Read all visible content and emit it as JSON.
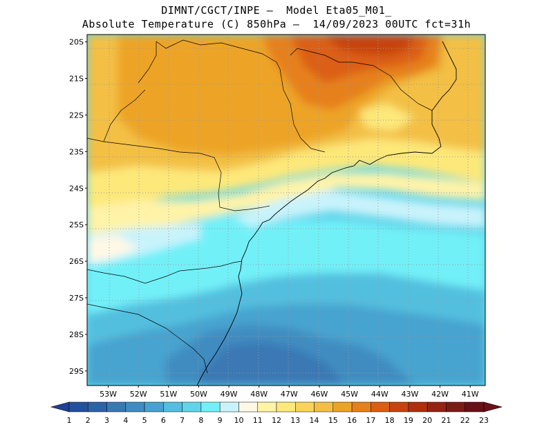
{
  "header": {
    "line1": "DIMNT/CGCT/INPE –  Model Eta05_M01_",
    "line2": "Absolute Temperature (C) 850hPa –  14/09/2023 00UTC fct=31h"
  },
  "map": {
    "lat_labels": [
      "20S",
      "21S",
      "22S",
      "23S",
      "24S",
      "25S",
      "26S",
      "27S",
      "28S",
      "29S"
    ],
    "lon_labels": [
      "53W",
      "52W",
      "51W",
      "50W",
      "49W",
      "48W",
      "47W",
      "46W",
      "45W",
      "44W",
      "43W",
      "42W",
      "41W"
    ],
    "lat_values": [
      -20,
      -21,
      -22,
      -23,
      -24,
      -25,
      -26,
      -27,
      -28,
      -29
    ],
    "lon_values": [
      -53,
      -52,
      -51,
      -50,
      -49,
      -48,
      -47,
      -46,
      -45,
      -44,
      -43,
      -42,
      -41
    ],
    "lon_range": [
      -53.7,
      -40.5
    ],
    "lat_range": [
      -29.4,
      -19.8
    ],
    "grid": true
  },
  "colorbar": {
    "labels": [
      "1",
      "2",
      "3",
      "4",
      "5",
      "6",
      "7",
      "8",
      "9",
      "10",
      "11",
      "12",
      "13",
      "14",
      "15",
      "16",
      "17",
      "18",
      "19",
      "20",
      "21",
      "22",
      "23"
    ],
    "colors": [
      "#1f3f99",
      "#22509f",
      "#2c62a8",
      "#3a78b4",
      "#3f8cc1",
      "#46a3cf",
      "#52bfdf",
      "#5fd5ea",
      "#72f0f8",
      "#c9f3fb",
      "#fff8e6",
      "#fff3a8",
      "#fde87a",
      "#f9d45a",
      "#f3c044",
      "#eda426",
      "#e6801a",
      "#db5e12",
      "#c8420d",
      "#b02e0d",
      "#962213",
      "#7e1a14",
      "#6a0f17"
    ]
  }
}
